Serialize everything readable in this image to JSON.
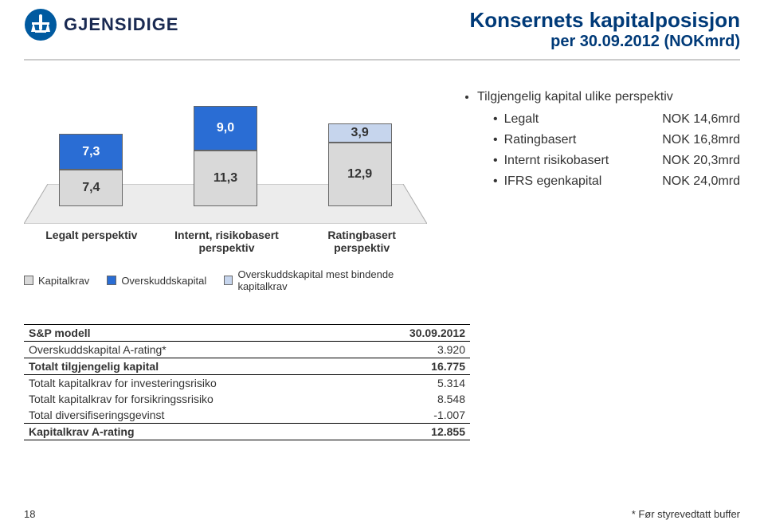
{
  "logo": {
    "text": "GJENSIDIGE"
  },
  "title": {
    "line1": "Konsernets kapitalposisjon",
    "line2": "per 30.09.2012 (NOKmrd)"
  },
  "chart": {
    "type": "stacked-bar-3d",
    "unit": "NOKmrd",
    "series": {
      "kapitalkrav": {
        "label": "Kapitalkrav",
        "color": "#d9d9d9"
      },
      "over_bind": {
        "label": "Overskuddskapital mest bindende kapitalkrav",
        "color": "#c6d5ed"
      },
      "over": {
        "label": "Overskuddskapital",
        "color": "#2a6dd4"
      }
    },
    "scale": 6.2,
    "platform": {
      "fill": "#ececec",
      "stroke": "#aaaaaa"
    },
    "value_label_fontsize": 16,
    "axis_label_fontsize": 14,
    "bars": [
      {
        "axis": "Legalt perspektiv",
        "segments": [
          {
            "value": "7,4",
            "h": 7.4,
            "color": "#d9d9d9"
          },
          {
            "value": "7,3",
            "h": 7.3,
            "color": "#2a6dd4",
            "text": "#ffffff"
          }
        ]
      },
      {
        "axis": "Internt, risikobasert perspektiv",
        "segments": [
          {
            "value": "11,3",
            "h": 11.3,
            "color": "#d9d9d9"
          },
          {
            "value": "9,0",
            "h": 9.0,
            "color": "#2a6dd4",
            "text": "#ffffff"
          }
        ]
      },
      {
        "axis": "Ratingbasert perspektiv",
        "segments": [
          {
            "value": "12,9",
            "h": 12.9,
            "color": "#d9d9d9"
          },
          {
            "value": "3,9",
            "h": 3.9,
            "color": "#c6d5ed"
          }
        ]
      }
    ],
    "legend_order": [
      "kapitalkrav",
      "over",
      "over_bind"
    ]
  },
  "bullets": {
    "head": "Tilgjengelig kapital ulike perspektiv",
    "items": [
      {
        "label": "Legalt",
        "value": "NOK 14,6mrd"
      },
      {
        "label": "Ratingbasert",
        "value": "NOK 16,8mrd"
      },
      {
        "label": "Internt risikobasert",
        "value": "NOK 20,3mrd"
      },
      {
        "label": "IFRS egenkapital",
        "value": "NOK 24,0mrd"
      }
    ]
  },
  "table": {
    "border_color": "#000000",
    "rows": [
      {
        "label": "S&P modell",
        "value": "30.09.2012",
        "bold": true,
        "bt": true,
        "bb": true
      },
      {
        "label": "Overskuddskapital A-rating*",
        "value": "3.920",
        "ul": true
      },
      {
        "label": "Totalt tilgjengelig kapital",
        "value": "16.775",
        "bold": true,
        "bb": true
      },
      {
        "label": "Totalt kapitalkrav for investeringsrisiko",
        "value": "5.314"
      },
      {
        "label": "Totalt kapitalkrav for forsikringssrisiko",
        "value": "8.548"
      },
      {
        "label": "Total diversifiseringsgevinst",
        "value": "-1.007",
        "ul": true
      },
      {
        "label": "Kapitalkrav A-rating",
        "value": "12.855",
        "bold": true,
        "bb": true
      }
    ]
  },
  "footer": {
    "page": "18",
    "note": "* Før styrevedtatt buffer"
  }
}
